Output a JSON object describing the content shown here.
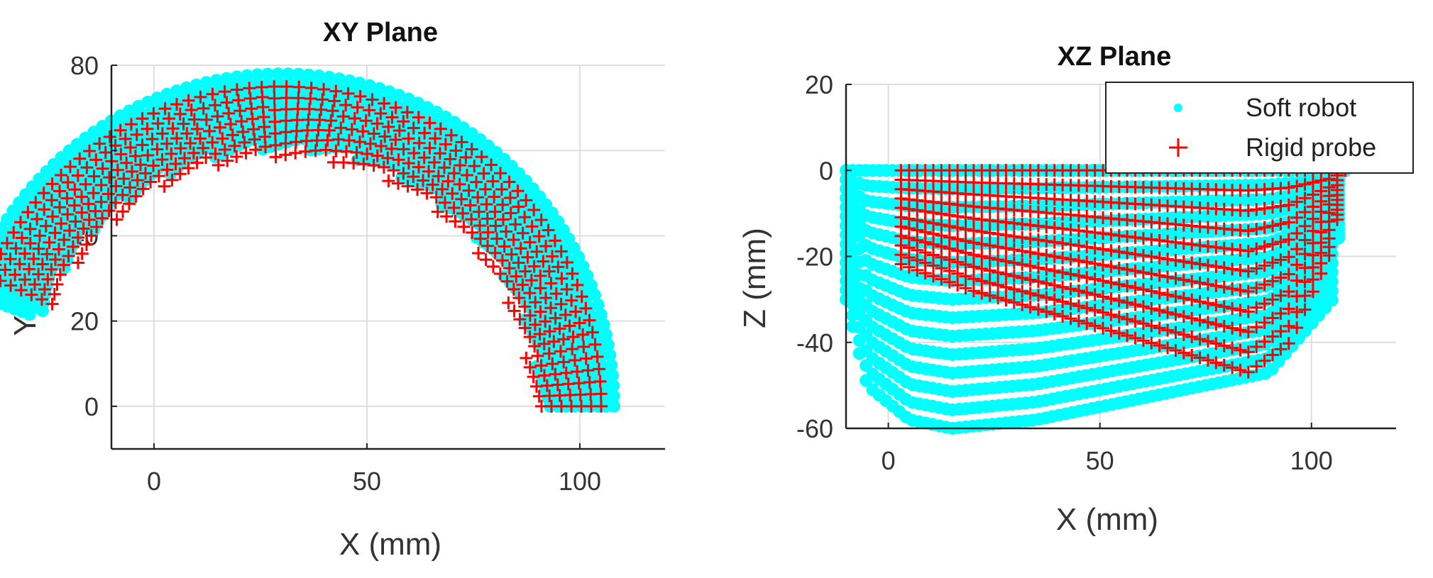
{
  "chart_data": [
    {
      "type": "scatter",
      "title": "XY Plane",
      "xlabel": "X (mm)",
      "ylabel": "Y (mm)",
      "xlim": [
        -10,
        120
      ],
      "ylim": [
        -10,
        80
      ],
      "xticks": [
        0,
        50,
        100
      ],
      "yticks": [
        0,
        20,
        40,
        60,
        80
      ],
      "grid": true,
      "legend": null,
      "series": [
        {
          "name": "Soft robot",
          "marker": "dot",
          "color": "#00ffff",
          "workspace": {
            "shape": "arc-band",
            "center": [
              30,
              0
            ],
            "outer_radius": [
              75,
              81
            ],
            "inner_radius": [
              60,
              66
            ],
            "angle_deg": [
              0,
              160
            ]
          }
        },
        {
          "name": "Rigid probe",
          "marker": "plus",
          "color": "#ff0000",
          "workspace": {
            "shape": "arc-band",
            "center": [
              30,
              0
            ],
            "outer_radius": [
              72,
              78
            ],
            "inner_radius": [
              58,
              64
            ],
            "angle_deg": [
              0,
              156
            ]
          }
        }
      ]
    },
    {
      "type": "scatter",
      "title": "XZ Plane",
      "xlabel": "X (mm)",
      "ylabel": "Z (mm)",
      "xlim": [
        -10,
        120
      ],
      "ylim": [
        -60,
        20
      ],
      "xticks": [
        0,
        50,
        100
      ],
      "yticks": [
        -60,
        -40,
        -20,
        0,
        20
      ],
      "grid": true,
      "legend": "top-right",
      "series": [
        {
          "name": "Soft robot",
          "marker": "dot",
          "color": "#00ffff",
          "workspace": {
            "shape": "region",
            "top_edge": [
              [
                -10,
                0
              ],
              [
                108,
                0
              ]
            ],
            "bottom_edge": [
              [
                -10,
                -30
              ],
              [
                -5,
                -50
              ],
              [
                5,
                -58
              ],
              [
                15,
                -60
              ],
              [
                35,
                -58
              ],
              [
                55,
                -54
              ],
              [
                75,
                -50
              ],
              [
                90,
                -47
              ],
              [
                105,
                -30
              ],
              [
                108,
                0
              ]
            ]
          }
        },
        {
          "name": "Rigid probe",
          "marker": "plus",
          "color": "#ff0000",
          "workspace": {
            "shape": "region",
            "top_edge": [
              [
                3,
                0
              ],
              [
                108,
                0
              ]
            ],
            "bottom_edge": [
              [
                -2,
                -20
              ],
              [
                20,
                -28
              ],
              [
                45,
                -35
              ],
              [
                65,
                -41
              ],
              [
                85,
                -47
              ],
              [
                95,
                -40
              ],
              [
                105,
                -18
              ],
              [
                108,
                0
              ]
            ]
          }
        }
      ]
    }
  ],
  "legend": {
    "entries": [
      "Soft robot",
      "Rigid probe"
    ]
  }
}
